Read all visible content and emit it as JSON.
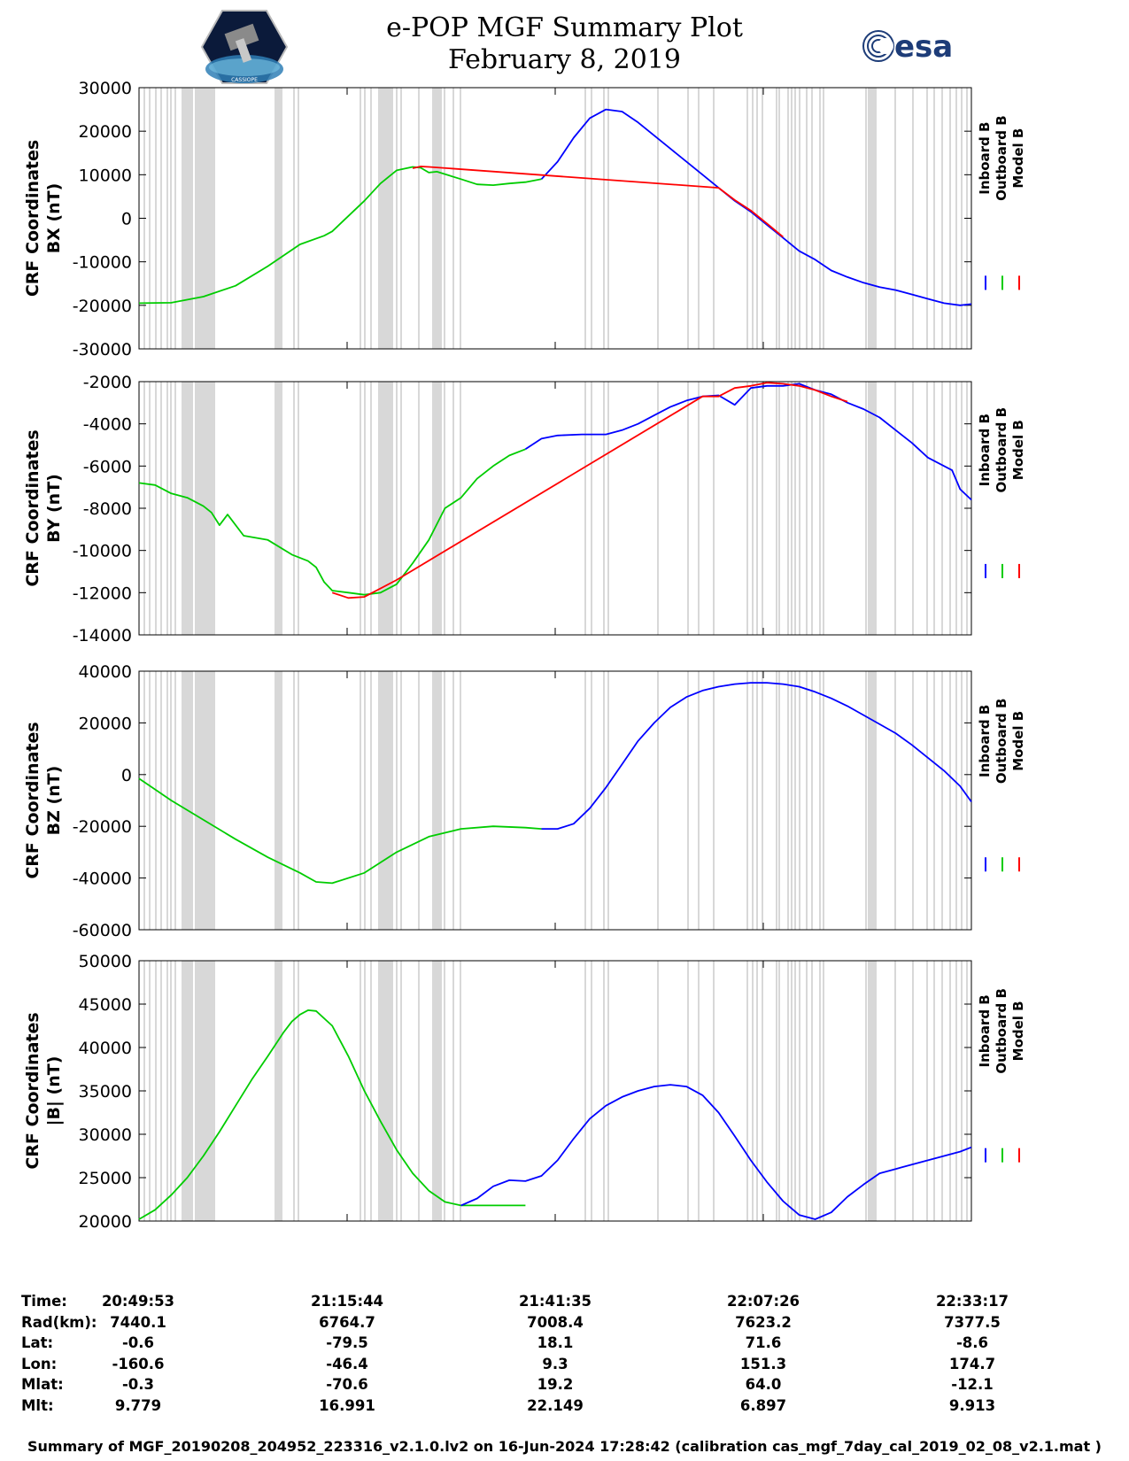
{
  "header": {
    "title_line1": "e-POP MGF Summary Plot",
    "title_line2": "February 8, 2019",
    "logo_left_text": "CASSIOPE",
    "logo_right_text": "esa"
  },
  "colors": {
    "inboard": "#0000ff",
    "outboard": "#00cc00",
    "model": "#ff0000",
    "gap_band": "#d8d8d8"
  },
  "chart_data": [
    {
      "type": "line",
      "id": "bx",
      "ylabel_line1": "CRF Coordinates",
      "ylabel_line2": "BX (nT)",
      "ylim": [
        -30000,
        30000
      ],
      "yticks": [
        -30000,
        -20000,
        -10000,
        0,
        10000,
        20000,
        30000
      ],
      "tick_labels": [
        "-30000",
        "-20000",
        "-10000",
        "0",
        "10000",
        "20000",
        "30000"
      ],
      "x_range_min": [
        0,
        103.4
      ],
      "legend": [
        "Inboard B",
        "Outboard B",
        "Model B"
      ],
      "series": [
        {
          "name": "Outboard B",
          "color": "outboard",
          "x": [
            0,
            4,
            8,
            12,
            16,
            20,
            23,
            24,
            28,
            30,
            32,
            34,
            35,
            36,
            37,
            40,
            42,
            44,
            46,
            48,
            50
          ],
          "y": [
            -19500,
            -19400,
            -18000,
            -15500,
            -11000,
            -6000,
            -4000,
            -3000,
            4000,
            8000,
            11000,
            11800,
            11600,
            10500,
            10700,
            9000,
            7800,
            7600,
            8000,
            8300,
            9000
          ]
        },
        {
          "name": "Inboard B",
          "color": "inboard",
          "x": [
            50,
            52,
            54,
            56,
            58,
            60,
            62,
            64,
            66,
            68,
            70,
            72,
            74,
            76,
            78,
            80,
            82,
            84,
            86,
            88,
            90,
            92,
            94,
            96,
            98,
            100,
            102,
            103.4
          ],
          "y": [
            9000,
            13000,
            18500,
            23000,
            25000,
            24500,
            22000,
            19000,
            16000,
            13000,
            10000,
            7000,
            4000,
            1500,
            -1500,
            -4500,
            -7500,
            -9500,
            -12000,
            -13500,
            -14800,
            -15800,
            -16500,
            -17500,
            -18500,
            -19500,
            -20000,
            -19700
          ]
        },
        {
          "name": "Model B",
          "color": "model",
          "x": [
            34,
            35,
            36,
            72,
            74,
            76,
            78,
            80
          ],
          "y": [
            11500,
            11900,
            11800,
            7000,
            4200,
            1800,
            -1200,
            -4300
          ]
        }
      ]
    },
    {
      "type": "line",
      "id": "by",
      "ylabel_line1": "CRF Coordinates",
      "ylabel_line2": "BY (nT)",
      "ylim": [
        -14000,
        -2000
      ],
      "yticks": [
        -14000,
        -12000,
        -10000,
        -8000,
        -6000,
        -4000,
        -2000
      ],
      "tick_labels": [
        "-14000",
        "-12000",
        "-10000",
        "-8000",
        "-6000",
        "-4000",
        "-2000"
      ],
      "x_range_min": [
        0,
        103.4
      ],
      "legend": [
        "Inboard B",
        "Outboard B",
        "Model B"
      ],
      "series": [
        {
          "name": "Outboard B",
          "color": "outboard",
          "x": [
            0,
            2,
            4,
            6,
            8,
            9,
            10,
            11,
            13,
            16,
            19,
            21,
            22,
            23,
            24,
            26,
            28,
            30,
            32,
            34,
            36,
            38,
            40,
            42,
            44,
            46,
            48
          ],
          "y": [
            -6800,
            -6900,
            -7300,
            -7500,
            -7900,
            -8200,
            -8800,
            -8300,
            -9300,
            -9500,
            -10200,
            -10500,
            -10800,
            -11500,
            -11900,
            -12000,
            -12100,
            -12000,
            -11600,
            -10600,
            -9500,
            -8000,
            -7500,
            -6600,
            -6000,
            -5500,
            -5200
          ]
        },
        {
          "name": "Inboard B",
          "color": "inboard",
          "x": [
            48,
            50,
            52,
            55,
            58,
            60,
            62,
            64,
            66,
            68,
            70,
            72,
            74,
            76,
            78,
            80,
            82,
            84,
            86,
            88,
            90,
            92,
            94,
            96,
            98,
            100,
            101,
            102,
            103.4
          ],
          "y": [
            -5200,
            -4700,
            -4550,
            -4500,
            -4500,
            -4300,
            -4000,
            -3600,
            -3200,
            -2900,
            -2700,
            -2650,
            -3100,
            -2300,
            -2200,
            -2200,
            -2100,
            -2400,
            -2600,
            -3000,
            -3300,
            -3700,
            -4300,
            -4900,
            -5600,
            -6000,
            -6200,
            -7100,
            -7600
          ]
        },
        {
          "name": "Model B",
          "color": "model",
          "x": [
            24,
            26,
            28,
            30,
            32,
            70,
            72,
            74,
            76,
            78,
            80,
            82,
            84,
            86,
            88
          ],
          "y": [
            -12000,
            -12250,
            -12200,
            -11800,
            -11400,
            -2700,
            -2700,
            -2300,
            -2200,
            -2050,
            -2100,
            -2200,
            -2400,
            -2700,
            -2950
          ]
        }
      ]
    },
    {
      "type": "line",
      "id": "bz",
      "ylabel_line1": "CRF Coordinates",
      "ylabel_line2": "BZ (nT)",
      "ylim": [
        -60000,
        40000
      ],
      "yticks": [
        -60000,
        -40000,
        -20000,
        0,
        20000,
        40000
      ],
      "tick_labels": [
        "-60000",
        "-40000",
        "-20000",
        "0",
        "20000",
        "40000"
      ],
      "x_range_min": [
        0,
        103.4
      ],
      "legend": [
        "Inboard B",
        "Outboard B",
        "Model B"
      ],
      "series": [
        {
          "name": "Outboard B",
          "color": "outboard",
          "x": [
            0,
            4,
            8,
            12,
            16,
            20,
            22,
            24,
            28,
            32,
            36,
            40,
            44,
            48,
            50
          ],
          "y": [
            -1500,
            -10000,
            -17500,
            -25000,
            -32000,
            -38000,
            -41500,
            -42000,
            -38000,
            -30000,
            -24000,
            -21000,
            -20000,
            -20500,
            -21000
          ]
        },
        {
          "name": "Inboard B",
          "color": "inboard",
          "x": [
            50,
            52,
            54,
            56,
            58,
            60,
            62,
            64,
            66,
            68,
            70,
            72,
            74,
            76,
            78,
            80,
            82,
            84,
            86,
            88,
            90,
            92,
            94,
            96,
            98,
            100,
            102,
            103.4
          ],
          "y": [
            -21000,
            -21000,
            -19000,
            -13000,
            -5000,
            4000,
            13000,
            20000,
            26000,
            30000,
            32500,
            34000,
            35000,
            35500,
            35500,
            35000,
            34000,
            32000,
            29500,
            26500,
            23000,
            19500,
            16000,
            11500,
            6500,
            1500,
            -4500,
            -10500
          ]
        }
      ]
    },
    {
      "type": "line",
      "id": "bmag",
      "ylabel_line1": "CRF Coordinates",
      "ylabel_line2": "|B| (nT)",
      "ylim": [
        20000,
        50000
      ],
      "yticks": [
        20000,
        25000,
        30000,
        35000,
        40000,
        45000,
        50000
      ],
      "tick_labels": [
        "20000",
        "25000",
        "30000",
        "35000",
        "40000",
        "45000",
        "50000"
      ],
      "x_range_min": [
        0,
        103.4
      ],
      "legend": [
        "Inboard B",
        "Outboard B",
        "Model B"
      ],
      "series": [
        {
          "name": "Outboard B",
          "color": "outboard",
          "x": [
            0,
            2,
            4,
            6,
            8,
            10,
            12,
            14,
            16,
            18,
            19,
            20,
            21,
            22,
            24,
            26,
            28,
            30,
            32,
            34,
            36,
            38,
            40,
            42,
            44,
            46,
            48
          ],
          "y": [
            20200,
            21300,
            23000,
            25000,
            27500,
            30300,
            33300,
            36300,
            39000,
            41800,
            43000,
            43800,
            44300,
            44200,
            42500,
            39000,
            35000,
            31500,
            28200,
            25500,
            23500,
            22200,
            21800,
            21800,
            21800,
            21800,
            21800
          ]
        },
        {
          "name": "Inboard B",
          "color": "inboard",
          "x": [
            40,
            42,
            44,
            46,
            48,
            50,
            52,
            54,
            56,
            58,
            60,
            62,
            64,
            66,
            68,
            70,
            72,
            74,
            76,
            78,
            80,
            82,
            84,
            86,
            88,
            90,
            92,
            94,
            96,
            98,
            100,
            102,
            103.4
          ],
          "y": [
            21800,
            22600,
            24000,
            24700,
            24600,
            25200,
            27000,
            29500,
            31800,
            33300,
            34300,
            35000,
            35500,
            35700,
            35500,
            34500,
            32500,
            29800,
            27000,
            24500,
            22300,
            20700,
            20200,
            21000,
            22800,
            24200,
            25500,
            26000,
            26500,
            27000,
            27500,
            28000,
            28500
          ]
        }
      ]
    }
  ],
  "info_table": {
    "rows": [
      {
        "key": "Time:",
        "values": [
          "20:49:53",
          "21:15:44",
          "21:41:35",
          "22:07:26",
          "22:33:17"
        ]
      },
      {
        "key": "Rad(km):",
        "values": [
          "7440.1",
          "6764.7",
          "7008.4",
          "7623.2",
          "7377.5"
        ]
      },
      {
        "key": "Lat:",
        "values": [
          "-0.6",
          "-79.5",
          "18.1",
          "71.6",
          "-8.6"
        ]
      },
      {
        "key": "Lon:",
        "values": [
          "-160.6",
          "-46.4",
          "9.3",
          "151.3",
          "174.7"
        ]
      },
      {
        "key": "Mlat:",
        "values": [
          "-0.3",
          "-70.6",
          "19.2",
          "64.0",
          "-12.1"
        ]
      },
      {
        "key": "Mlt:",
        "values": [
          "9.779",
          "16.991",
          "22.149",
          "6.897",
          "9.913"
        ]
      }
    ]
  },
  "footer": {
    "text": "Summary of MGF_20190208_204952_223316_v2.1.0.lv2 on 16-Jun-2024 17:28:42 (calibration cas_mgf_7day_cal_2019_02_08_v2.1.mat )"
  }
}
